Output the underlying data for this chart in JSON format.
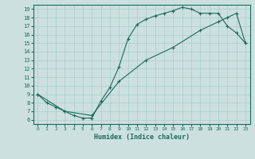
{
  "xlabel": "Humidex (Indice chaleur)",
  "xlim": [
    -0.5,
    23.5
  ],
  "ylim": [
    5.5,
    19.5
  ],
  "xticks": [
    0,
    1,
    2,
    3,
    4,
    5,
    6,
    7,
    8,
    9,
    10,
    11,
    12,
    13,
    14,
    15,
    16,
    17,
    18,
    19,
    20,
    21,
    22,
    23
  ],
  "yticks": [
    6,
    7,
    8,
    9,
    10,
    11,
    12,
    13,
    14,
    15,
    16,
    17,
    18,
    19
  ],
  "color": "#1a6b5a",
  "bg_color": "#cce0e0",
  "grid_color": "#aacccc",
  "line1_x": [
    0,
    1,
    2,
    3,
    4,
    5,
    6,
    7,
    8,
    9,
    10,
    11,
    12,
    13,
    14,
    15,
    16,
    17,
    18,
    19,
    20,
    21,
    22,
    23
  ],
  "line1_y": [
    9.0,
    8.0,
    7.5,
    7.0,
    6.5,
    6.2,
    6.2,
    8.2,
    9.8,
    12.2,
    15.5,
    17.2,
    17.8,
    18.2,
    18.5,
    18.8,
    19.2,
    19.0,
    18.5,
    18.5,
    18.5,
    17.0,
    16.2,
    15.0
  ],
  "line2_x": [
    0,
    3,
    6,
    9,
    12,
    15,
    18,
    20,
    21,
    22,
    23
  ],
  "line2_y": [
    9.0,
    7.0,
    6.5,
    10.5,
    13.0,
    14.5,
    16.5,
    17.5,
    18.0,
    18.5,
    15.0
  ],
  "marker": "+"
}
